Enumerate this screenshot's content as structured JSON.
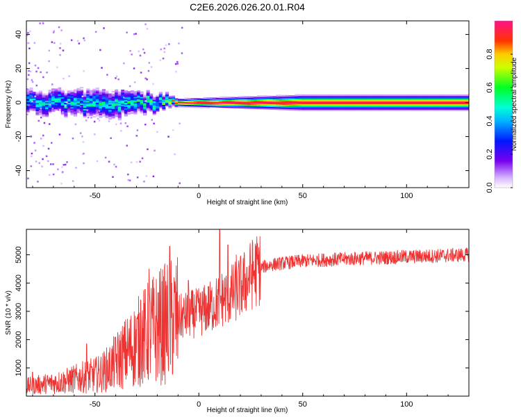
{
  "title": "C2E6.2026.026.20.01.R04",
  "chart_data": [
    {
      "type": "heatmap",
      "name": "spectrogram",
      "xlabel": "Height of straight line (km)",
      "ylabel": "Frequency (Hz)",
      "xlim": [
        -83,
        130
      ],
      "ylim": [
        -50,
        48
      ],
      "xticks": [
        -50,
        0,
        50,
        100
      ],
      "yticks": [
        -40,
        -20,
        0,
        20,
        40
      ],
      "colorbar": {
        "label": "Normalized spectral amplitude",
        "range": [
          0,
          1
        ],
        "ticks": [
          "0.0",
          "0.2",
          "0.4",
          "0.6",
          "0.8"
        ]
      },
      "band": {
        "center_hz": 0,
        "description_points": [
          {
            "x": -80,
            "halfwidth_hz": 5,
            "peak": 0.45
          },
          {
            "x": -40,
            "halfwidth_hz": 6,
            "peak": 0.5
          },
          {
            "x": -15,
            "halfwidth_hz": 3,
            "peak": 0.6
          },
          {
            "x": -10,
            "halfwidth_hz": 1.5,
            "peak": 0.95
          },
          {
            "x": 10,
            "halfwidth_hz": 2,
            "peak": 1.0
          },
          {
            "x": 50,
            "halfwidth_hz": 3,
            "peak": 0.95
          },
          {
            "x": 130,
            "halfwidth_hz": 3,
            "peak": 0.95
          }
        ]
      }
    },
    {
      "type": "line",
      "name": "snr",
      "xlabel": "Height of straight line (km)",
      "ylabel": "SNR (10 * v/v)",
      "xlim": [
        -83,
        130
      ],
      "ylim": [
        0,
        5900
      ],
      "xticks": [
        -50,
        0,
        50,
        100
      ],
      "yticks": [
        1000,
        2000,
        3000,
        4000,
        5000
      ],
      "color": "#ee3333",
      "series": [
        {
          "name": "SNR",
          "x": [
            -83,
            -75,
            -65,
            -55,
            -48,
            -43,
            -38,
            -33,
            -28,
            -23,
            -18,
            -15,
            -12,
            -8,
            -4,
            0,
            4,
            8,
            10,
            13,
            17,
            22,
            26,
            30,
            35,
            40,
            50,
            60,
            70,
            80,
            90,
            100,
            110,
            120,
            130
          ],
          "y": [
            350,
            420,
            520,
            680,
            780,
            1000,
            1350,
            1650,
            2000,
            2300,
            2500,
            2600,
            2700,
            2800,
            2900,
            2950,
            3100,
            3250,
            3400,
            3500,
            3650,
            4000,
            4350,
            4550,
            4650,
            4700,
            4780,
            4820,
            4850,
            4880,
            4900,
            4930,
            4950,
            4980,
            5000
          ]
        }
      ],
      "spikes": [
        {
          "x": -80,
          "y": 850
        },
        {
          "x": -54,
          "y": 1850
        },
        {
          "x": -28,
          "y": 3400
        },
        {
          "x": -24,
          "y": 4500
        },
        {
          "x": -14,
          "y": 5300
        },
        {
          "x": -5,
          "y": 4100
        },
        {
          "x": 10,
          "y": 5900
        },
        {
          "x": 14,
          "y": 5350
        },
        {
          "x": 18,
          "y": 5000
        }
      ]
    }
  ]
}
